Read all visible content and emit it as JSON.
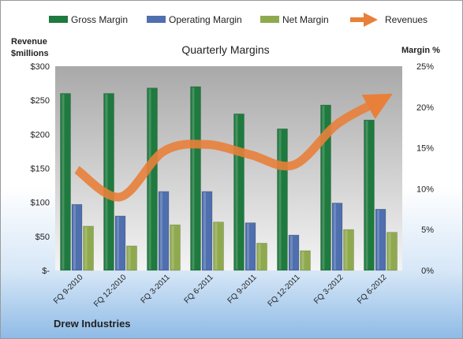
{
  "chart_data": {
    "type": "bar",
    "title": "Quarterly Margins",
    "company": "Drew Industries",
    "left_axis_label_line1": "Revenue",
    "left_axis_label_line2": "$millions",
    "right_axis_label": "Margin %",
    "categories": [
      "FQ 9-2010",
      "FQ 12-2010",
      "FQ 3-2011",
      "FQ 6-2011",
      "FQ 9-2011",
      "FQ 12-2011",
      "FQ 3-2012",
      "FQ 6-2012"
    ],
    "left_ticks": [
      "$-",
      "$50",
      "$100",
      "$150",
      "$200",
      "$250",
      "$300"
    ],
    "right_ticks": [
      "0%",
      "5%",
      "10%",
      "15%",
      "20%",
      "25%"
    ],
    "ylim_left": [
      0,
      300
    ],
    "ylim_right": [
      0,
      25
    ],
    "series": [
      {
        "name": "Gross Margin",
        "axis": "left",
        "kind": "bar",
        "color": "#1e7a3e",
        "values": [
          260,
          260,
          268,
          270,
          230,
          208,
          243,
          221
        ]
      },
      {
        "name": "Operating Margin",
        "axis": "left",
        "kind": "bar",
        "color": "#4f6fae",
        "values": [
          97,
          80,
          116,
          116,
          70,
          52,
          99,
          90
        ]
      },
      {
        "name": "Net Margin",
        "axis": "left",
        "kind": "bar",
        "color": "#8faa4e",
        "values": [
          65,
          36,
          67,
          71,
          40,
          29,
          60,
          56
        ]
      },
      {
        "name": "Revenues",
        "axis": "left",
        "kind": "line",
        "color": "#e8803a",
        "values": [
          148,
          108,
          175,
          185,
          170,
          155,
          215,
          250
        ]
      }
    ],
    "legend_position": "top",
    "grid": false
  }
}
